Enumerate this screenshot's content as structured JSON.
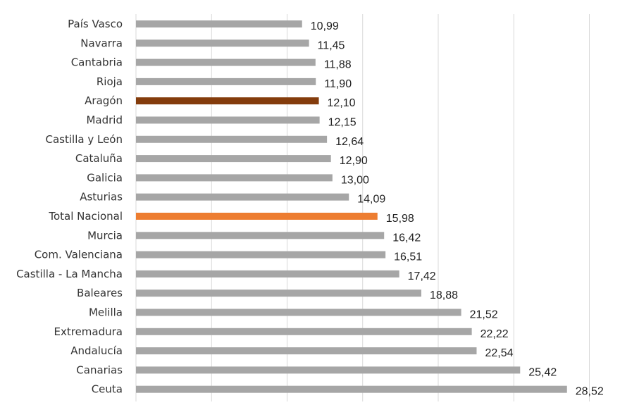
{
  "chart_data": {
    "type": "bar",
    "orientation": "horizontal",
    "title": "",
    "xlabel": "",
    "ylabel": "",
    "xlim": [
      0,
      30
    ],
    "grid": true,
    "legend": "none",
    "categories": [
      "País Vasco",
      "Navarra",
      "Cantabria",
      "Rioja",
      "Aragón",
      "Madrid",
      "Castilla y León",
      "Cataluña",
      "Galicia",
      "Asturias",
      "Total Nacional",
      "Murcia",
      "Com. Valenciana",
      "Castilla - La Mancha",
      "Baleares",
      "Melilla",
      "Extremadura",
      "Andalucía",
      "Canarias",
      "Ceuta"
    ],
    "values": [
      10.99,
      11.45,
      11.88,
      11.9,
      12.1,
      12.15,
      12.64,
      12.9,
      13.0,
      14.09,
      15.98,
      16.42,
      16.51,
      17.42,
      18.88,
      21.52,
      22.22,
      22.54,
      25.42,
      28.52
    ],
    "value_labels": [
      "10,99",
      "11,45",
      "11,88",
      "11,90",
      "12,10",
      "12,15",
      "12,64",
      "12,90",
      "13,00",
      "14,09",
      "15,98",
      "16,42",
      "16,51",
      "17,42",
      "18,88",
      "21,52",
      "22,22",
      "22,54",
      "25,42",
      "28,52"
    ],
    "colors": {
      "default": "#a6a6a6",
      "highlight": {
        "Aragón": "#843c0c",
        "Total Nacional": "#ed7d31"
      },
      "gridline": "#d9d9d9"
    }
  }
}
